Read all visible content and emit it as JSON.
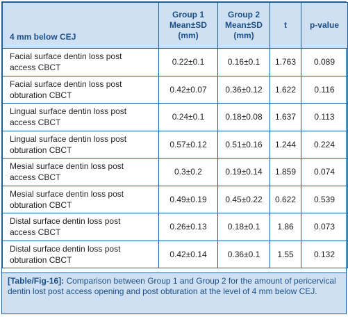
{
  "table": {
    "header": {
      "title": "4 mm below CEJ",
      "group1_line1": "Group 1",
      "group1_line2": "Mean±SD",
      "group1_line3": "(mm)",
      "group2_line1": "Group 2",
      "group2_line2": "Mean±SD",
      "group2_line3": "(mm)",
      "t": "t",
      "p": "p-value"
    },
    "rows": [
      {
        "line1": "Facial surface dentin loss post",
        "line2": "access CBCT",
        "g1": "0.22±0.1",
        "g2": "0.16±0.1",
        "t": "1.763",
        "p": "0.089"
      },
      {
        "line1": "Facial surface dentin loss post",
        "line2": "obturation CBCT",
        "g1": "0.42±0.07",
        "g2": "0.36±0.12",
        "t": "1.622",
        "p": "0.116"
      },
      {
        "line1": "Lingual surface dentin loss post",
        "line2": "access CBCT",
        "g1": "0.24±0.1",
        "g2": "0.18±0.08",
        "t": "1.637",
        "p": "0.113"
      },
      {
        "line1": "Lingual surface dentin loss post",
        "line2": "obturation CBCT",
        "g1": "0.57±0.12",
        "g2": "0.51±0.16",
        "t": "1.244",
        "p": "0.224"
      },
      {
        "line1": "Mesial surface dentin loss post",
        "line2": "access CBCT",
        "g1": "0.3±0.2",
        "g2": "0.19±0.14",
        "t": "1.859",
        "p": "0.074"
      },
      {
        "line1": "Mesial surface dentin loss post",
        "line2": "obturation CBCT",
        "g1": "0.49±0.19",
        "g2": "0.45±0.22",
        "t": "0.622",
        "p": "0.539"
      },
      {
        "line1": "Distal surface dentin loss post",
        "line2": "access CBCT",
        "g1": "0.26±0.13",
        "g2": "0.18±0.1",
        "t": "1.86",
        "p": "0.073"
      },
      {
        "line1": "Distal surface dentin loss post",
        "line2": "obturation CBCT",
        "g1": "0.42±0.14",
        "g2": "0.36±0.1",
        "t": "1.55",
        "p": "0.132"
      }
    ]
  },
  "caption": {
    "label": "[Table/Fig-16]:",
    "text": " Comparison between Group 1 and Group 2 for the amount of pericervical dentin lost post access opening and post obturation at the level of 4 mm below CEJ."
  },
  "colors": {
    "header_bg": "#cfe0f2",
    "border": "#1f5d96",
    "header_text": "#1b4f87"
  }
}
